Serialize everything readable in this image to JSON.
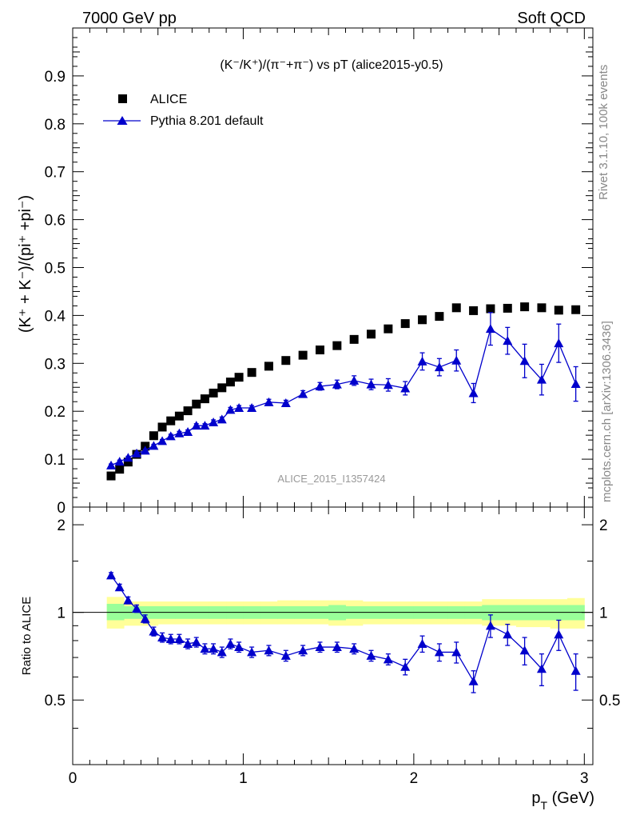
{
  "header": {
    "left": "7000 GeV pp",
    "right": "Soft QCD"
  },
  "side_labels": {
    "rivet": "Rivet 3.1.10,  100k events",
    "mcplots": "mcplots.cern.ch [arXiv:1306.3436]"
  },
  "colors": {
    "mc": "#0000cc",
    "band_outer": "#ffff99",
    "band_inner": "#99ff99",
    "data": "#000000"
  },
  "chart_data": {
    "type": "scatter",
    "title": "(K⁻/K⁺)/(π⁻+π⁻) vs pT (alice2015-y0.5)",
    "watermark": "ALICE_2015_I1357424",
    "ylabel": "(K⁺ + K⁻)/(pi⁺ +pi⁻)",
    "xlabel": "p_T (GeV)",
    "xlabel_main": "p",
    "xlabel_sub": "T",
    "xlabel_unit": " (GeV)",
    "xlim": [
      0,
      3.05
    ],
    "ylim": [
      0,
      1
    ],
    "xticks": [
      "0",
      "1",
      "2",
      "3"
    ],
    "yticks": [
      "0",
      "0.1",
      "0.2",
      "0.3",
      "0.4",
      "0.5",
      "0.6",
      "0.7",
      "0.8",
      "0.9"
    ],
    "legend": {
      "position": "top-left",
      "entries": [
        "ALICE",
        "Pythia 8.201 default"
      ]
    },
    "series": [
      {
        "name": "ALICE",
        "marker": "square",
        "x": [
          0.225,
          0.275,
          0.325,
          0.375,
          0.425,
          0.475,
          0.525,
          0.575,
          0.625,
          0.675,
          0.725,
          0.775,
          0.825,
          0.875,
          0.925,
          0.975,
          1.05,
          1.15,
          1.25,
          1.35,
          1.45,
          1.55,
          1.65,
          1.75,
          1.85,
          1.95,
          2.05,
          2.15,
          2.25,
          2.35,
          2.45,
          2.55,
          2.65,
          2.75,
          2.85,
          2.95
        ],
        "y": [
          0.065,
          0.079,
          0.094,
          0.11,
          0.127,
          0.149,
          0.167,
          0.18,
          0.19,
          0.201,
          0.215,
          0.226,
          0.238,
          0.249,
          0.261,
          0.271,
          0.281,
          0.294,
          0.306,
          0.317,
          0.328,
          0.337,
          0.35,
          0.361,
          0.372,
          0.383,
          0.391,
          0.398,
          0.416,
          0.41,
          0.414,
          0.415,
          0.418,
          0.416,
          0.411,
          0.412
        ]
      },
      {
        "name": "Pythia 8.201 default",
        "marker": "triangle",
        "x": [
          0.225,
          0.275,
          0.325,
          0.375,
          0.425,
          0.475,
          0.525,
          0.575,
          0.625,
          0.675,
          0.725,
          0.775,
          0.825,
          0.875,
          0.925,
          0.975,
          1.05,
          1.15,
          1.25,
          1.35,
          1.45,
          1.55,
          1.65,
          1.75,
          1.85,
          1.95,
          2.05,
          2.15,
          2.25,
          2.35,
          2.45,
          2.55,
          2.65,
          2.75,
          2.85,
          2.95
        ],
        "y": [
          0.087,
          0.095,
          0.103,
          0.112,
          0.118,
          0.128,
          0.138,
          0.148,
          0.154,
          0.157,
          0.17,
          0.17,
          0.177,
          0.183,
          0.203,
          0.207,
          0.207,
          0.219,
          0.217,
          0.236,
          0.252,
          0.256,
          0.264,
          0.256,
          0.255,
          0.248,
          0.304,
          0.292,
          0.306,
          0.238,
          0.372,
          0.347,
          0.305,
          0.266,
          0.342,
          0.257
        ],
        "yerr": [
          0.003,
          0.003,
          0.003,
          0.003,
          0.003,
          0.003,
          0.003,
          0.004,
          0.004,
          0.004,
          0.004,
          0.004,
          0.005,
          0.005,
          0.005,
          0.005,
          0.005,
          0.006,
          0.006,
          0.007,
          0.008,
          0.009,
          0.01,
          0.011,
          0.013,
          0.014,
          0.018,
          0.018,
          0.022,
          0.02,
          0.034,
          0.028,
          0.035,
          0.032,
          0.04,
          0.036
        ]
      }
    ],
    "ratio": {
      "ylabel": "Ratio to ALICE",
      "ylim": [
        0.3,
        2.3
      ],
      "yticks": [
        "0.5",
        "1",
        "2"
      ],
      "ytick_values": [
        0.5,
        1,
        2
      ],
      "y": [
        1.34,
        1.22,
        1.1,
        1.03,
        0.95,
        0.86,
        0.82,
        0.81,
        0.81,
        0.78,
        0.79,
        0.75,
        0.75,
        0.73,
        0.78,
        0.76,
        0.73,
        0.74,
        0.71,
        0.74,
        0.76,
        0.76,
        0.75,
        0.71,
        0.69,
        0.65,
        0.78,
        0.73,
        0.73,
        0.58,
        0.9,
        0.84,
        0.74,
        0.64,
        0.84,
        0.63
      ],
      "yerr": [
        0.03,
        0.03,
        0.03,
        0.03,
        0.03,
        0.03,
        0.03,
        0.03,
        0.03,
        0.03,
        0.03,
        0.03,
        0.03,
        0.03,
        0.03,
        0.03,
        0.03,
        0.03,
        0.03,
        0.03,
        0.03,
        0.03,
        0.03,
        0.03,
        0.03,
        0.04,
        0.05,
        0.05,
        0.06,
        0.05,
        0.08,
        0.07,
        0.08,
        0.08,
        0.1,
        0.09
      ],
      "band_x_edges": [
        0.2,
        0.3,
        0.4,
        0.5,
        0.6,
        0.7,
        0.8,
        0.9,
        1.0,
        1.1,
        1.2,
        1.3,
        1.4,
        1.5,
        1.6,
        1.7,
        1.8,
        1.9,
        2.0,
        2.1,
        2.2,
        2.3,
        2.4,
        2.5,
        2.6,
        2.7,
        2.8,
        2.9,
        3.0
      ],
      "band_outer": [
        [
          0.88,
          1.13
        ],
        [
          0.9,
          1.09
        ],
        [
          0.9,
          1.09
        ],
        [
          0.91,
          1.09
        ],
        [
          0.91,
          1.09
        ],
        [
          0.91,
          1.09
        ],
        [
          0.91,
          1.09
        ],
        [
          0.91,
          1.09
        ],
        [
          0.91,
          1.09
        ],
        [
          0.91,
          1.09
        ],
        [
          0.91,
          1.1
        ],
        [
          0.91,
          1.1
        ],
        [
          0.91,
          1.1
        ],
        [
          0.9,
          1.1
        ],
        [
          0.9,
          1.1
        ],
        [
          0.91,
          1.09
        ],
        [
          0.91,
          1.09
        ],
        [
          0.91,
          1.09
        ],
        [
          0.91,
          1.09
        ],
        [
          0.91,
          1.09
        ],
        [
          0.91,
          1.09
        ],
        [
          0.91,
          1.09
        ],
        [
          0.9,
          1.11
        ],
        [
          0.9,
          1.11
        ],
        [
          0.89,
          1.11
        ],
        [
          0.89,
          1.11
        ],
        [
          0.88,
          1.11
        ],
        [
          0.88,
          1.12
        ]
      ],
      "band_inner": [
        [
          0.94,
          1.07
        ],
        [
          0.95,
          1.05
        ],
        [
          0.95,
          1.05
        ],
        [
          0.95,
          1.05
        ],
        [
          0.95,
          1.05
        ],
        [
          0.95,
          1.05
        ],
        [
          0.95,
          1.05
        ],
        [
          0.95,
          1.05
        ],
        [
          0.95,
          1.05
        ],
        [
          0.95,
          1.05
        ],
        [
          0.95,
          1.05
        ],
        [
          0.95,
          1.05
        ],
        [
          0.95,
          1.05
        ],
        [
          0.94,
          1.06
        ],
        [
          0.95,
          1.05
        ],
        [
          0.95,
          1.05
        ],
        [
          0.95,
          1.05
        ],
        [
          0.95,
          1.05
        ],
        [
          0.95,
          1.05
        ],
        [
          0.95,
          1.05
        ],
        [
          0.95,
          1.05
        ],
        [
          0.95,
          1.05
        ],
        [
          0.94,
          1.06
        ],
        [
          0.94,
          1.06
        ],
        [
          0.94,
          1.06
        ],
        [
          0.94,
          1.06
        ],
        [
          0.94,
          1.06
        ],
        [
          0.94,
          1.06
        ]
      ]
    }
  }
}
